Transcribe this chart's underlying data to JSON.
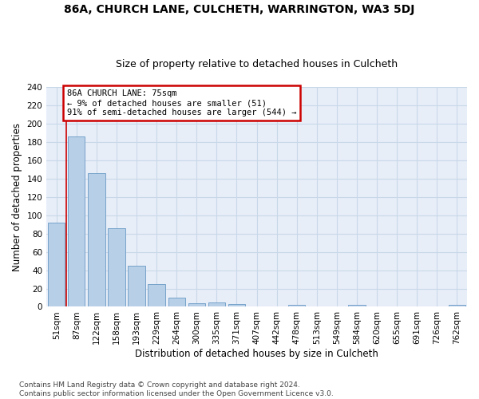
{
  "title": "86A, CHURCH LANE, CULCHETH, WARRINGTON, WA3 5DJ",
  "subtitle": "Size of property relative to detached houses in Culcheth",
  "xlabel": "Distribution of detached houses by size in Culcheth",
  "ylabel": "Number of detached properties",
  "categories": [
    "51sqm",
    "87sqm",
    "122sqm",
    "158sqm",
    "193sqm",
    "229sqm",
    "264sqm",
    "300sqm",
    "335sqm",
    "371sqm",
    "407sqm",
    "442sqm",
    "478sqm",
    "513sqm",
    "549sqm",
    "584sqm",
    "620sqm",
    "655sqm",
    "691sqm",
    "726sqm",
    "762sqm"
  ],
  "values": [
    92,
    186,
    146,
    86,
    45,
    25,
    10,
    4,
    5,
    3,
    0,
    0,
    2,
    0,
    0,
    2,
    0,
    0,
    0,
    0,
    2
  ],
  "bar_color": "#b8cfe8",
  "bar_edge_color": "#6899c4",
  "property_line_x": 0.5,
  "annotation_text": "86A CHURCH LANE: 75sqm\n← 9% of detached houses are smaller (51)\n91% of semi-detached houses are larger (544) →",
  "annotation_box_color": "#ffffff",
  "annotation_box_edge_color": "#cc0000",
  "ylim": [
    0,
    240
  ],
  "yticks": [
    0,
    20,
    40,
    60,
    80,
    100,
    120,
    140,
    160,
    180,
    200,
    220,
    240
  ],
  "grid_color": "#c8d8e8",
  "background_color": "#e8eef8",
  "footer_text": "Contains HM Land Registry data © Crown copyright and database right 2024.\nContains public sector information licensed under the Open Government Licence v3.0.",
  "title_fontsize": 10,
  "subtitle_fontsize": 9,
  "axis_label_fontsize": 8.5,
  "tick_fontsize": 7.5,
  "footer_fontsize": 6.5
}
